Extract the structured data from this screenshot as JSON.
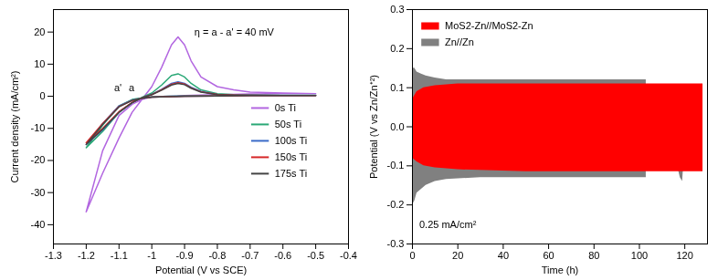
{
  "chart_data": [
    {
      "type": "line",
      "xlabel": "Potential (V vs SCE)",
      "ylabel": "Current density (mA/cm²)",
      "xlim": [
        -1.3,
        -0.4
      ],
      "xticks": [
        -1.3,
        -1.2,
        -1.1,
        -1.0,
        -0.9,
        -0.8,
        -0.7,
        -0.6,
        -0.5,
        -0.4
      ],
      "ylim": [
        -46,
        27
      ],
      "yticks": [
        -40,
        -30,
        -20,
        -10,
        0,
        10,
        20
      ],
      "legend": "right",
      "annotations": [
        {
          "text": "η = a - a' = 40 mV",
          "x": -0.87,
          "y": 20
        },
        {
          "text": "a'",
          "x": -1.115,
          "y": 2.5
        },
        {
          "text": "a",
          "x": -1.07,
          "y": 2.5
        }
      ],
      "series": [
        {
          "name": "0s Ti",
          "color": "#b266e0",
          "x": [
            -0.5,
            -0.6,
            -0.7,
            -0.8,
            -0.9,
            -0.95,
            -1.0,
            -1.03,
            -1.06,
            -1.1,
            -1.15,
            -1.2,
            -1.15,
            -1.1,
            -1.06,
            -1.03,
            -1.0,
            -0.97,
            -0.94,
            -0.92,
            -0.9,
            -0.88,
            -0.85,
            -0.8,
            -0.75,
            -0.7,
            -0.6,
            -0.5
          ],
          "values": [
            0.8,
            0.8,
            0.7,
            0.5,
            0.2,
            0,
            -0.2,
            -1,
            -2.5,
            -6,
            -17,
            -36,
            -24,
            -13,
            -5,
            -1,
            3,
            9,
            16,
            18.5,
            16,
            11,
            6,
            3,
            2,
            1.3,
            1,
            0.8
          ]
        },
        {
          "name": "50s Ti",
          "color": "#2aa876",
          "x": [
            -0.5,
            -0.6,
            -0.7,
            -0.8,
            -0.9,
            -0.95,
            -1.0,
            -1.03,
            -1.06,
            -1.1,
            -1.15,
            -1.2,
            -1.15,
            -1.1,
            -1.06,
            -1.03,
            -1.0,
            -0.97,
            -0.94,
            -0.92,
            -0.9,
            -0.88,
            -0.85,
            -0.8,
            -0.75,
            -0.7,
            -0.6,
            -0.5
          ],
          "values": [
            0.3,
            0.3,
            0.3,
            0.2,
            0.1,
            0,
            -0.2,
            -0.5,
            -1,
            -3,
            -9,
            -16,
            -11,
            -5,
            -2,
            -0.3,
            1,
            3.5,
            6.5,
            7,
            6,
            4,
            2,
            0.8,
            0.5,
            0.4,
            0.3,
            0.3
          ]
        },
        {
          "name": "100s Ti",
          "color": "#3a6bc8",
          "x": [
            -0.5,
            -0.6,
            -0.7,
            -0.8,
            -0.9,
            -0.95,
            -1.0,
            -1.03,
            -1.06,
            -1.1,
            -1.15,
            -1.2,
            -1.15,
            -1.1,
            -1.06,
            -1.03,
            -1.0,
            -0.97,
            -0.94,
            -0.92,
            -0.9,
            -0.88,
            -0.85,
            -0.8,
            -0.75,
            -0.7,
            -0.6,
            -0.5
          ],
          "values": [
            0.2,
            0.2,
            0.2,
            0.1,
            0,
            -0.1,
            -0.3,
            -0.6,
            -1.2,
            -3,
            -8.5,
            -15,
            -10.5,
            -5,
            -2,
            -0.5,
            0.6,
            2.2,
            4,
            4.5,
            4,
            2.8,
            1.5,
            0.6,
            0.4,
            0.3,
            0.2,
            0.2
          ]
        },
        {
          "name": "150s Ti",
          "color": "#d62728",
          "x": [
            -0.5,
            -0.6,
            -0.7,
            -0.8,
            -0.9,
            -0.95,
            -1.0,
            -1.03,
            -1.06,
            -1.1,
            -1.15,
            -1.2,
            -1.15,
            -1.1,
            -1.06,
            -1.03,
            -1.0,
            -0.97,
            -0.94,
            -0.92,
            -0.9,
            -0.88,
            -0.85,
            -0.8,
            -0.75,
            -0.7,
            -0.6,
            -0.5
          ],
          "values": [
            0.2,
            0.2,
            0.2,
            0.1,
            0,
            -0.1,
            -0.3,
            -0.6,
            -1.3,
            -3.2,
            -8.5,
            -14.5,
            -10,
            -4.8,
            -1.9,
            -0.5,
            0.5,
            2,
            3.7,
            4.2,
            3.8,
            2.6,
            1.4,
            0.6,
            0.4,
            0.3,
            0.2,
            0.2
          ]
        },
        {
          "name": "175s Ti",
          "color": "#444444",
          "x": [
            -0.5,
            -0.6,
            -0.7,
            -0.8,
            -0.9,
            -0.95,
            -1.0,
            -1.03,
            -1.06,
            -1.1,
            -1.15,
            -1.2,
            -1.15,
            -1.1,
            -1.06,
            -1.03,
            -1.0,
            -0.97,
            -0.94,
            -0.92,
            -0.9,
            -0.88,
            -0.85,
            -0.8,
            -0.75,
            -0.7,
            -0.6,
            -0.5
          ],
          "values": [
            0.2,
            0.2,
            0.2,
            0.1,
            0,
            -0.1,
            -0.3,
            -0.6,
            -1.3,
            -3.3,
            -8.8,
            -15,
            -10.3,
            -5,
            -2,
            -0.5,
            0.5,
            1.9,
            3.5,
            4,
            3.6,
            2.5,
            1.3,
            0.5,
            0.3,
            0.3,
            0.2,
            0.2
          ]
        }
      ]
    },
    {
      "type": "band",
      "xlabel": "Time (h)",
      "ylabel": "Potential (V vs Zn/Zn⁺²)",
      "xlim": [
        0,
        130
      ],
      "xticks": [
        0,
        20,
        40,
        60,
        80,
        100,
        120
      ],
      "ylim": [
        -0.3,
        0.3
      ],
      "yticks": [
        -0.3,
        -0.2,
        -0.1,
        {
          "value": 0,
          "label": "0.0"
        },
        0.1,
        0.2,
        0.3
      ],
      "legend": "top-left",
      "annotations": [
        {
          "text": "0.25 mA/cm²",
          "x": 3,
          "y": -0.25
        }
      ],
      "series": [
        {
          "name": "MoS2-Zn//MoS2-Zn",
          "color": "#ff0000",
          "x": [
            0,
            2,
            5,
            10,
            20,
            50,
            100,
            128
          ],
          "upper": [
            0.07,
            0.09,
            0.1,
            0.105,
            0.11,
            0.11,
            0.11,
            0.11
          ],
          "lower": [
            -0.08,
            -0.09,
            -0.1,
            -0.105,
            -0.11,
            -0.115,
            -0.115,
            -0.115
          ]
        },
        {
          "name": "Zn//Zn",
          "color": "#808080",
          "x": [
            0,
            1,
            2,
            4,
            6,
            10,
            15,
            30,
            50,
            70,
            90,
            100,
            103,
            105,
            108,
            110,
            112,
            114,
            116,
            118,
            119,
            120,
            122
          ],
          "upper": [
            0.15,
            0.15,
            0.14,
            0.135,
            0.13,
            0.125,
            0.12,
            0.12,
            0.12,
            0.12,
            0.12,
            0.12,
            0.12,
            null,
            0.03,
            0.05,
            0.06,
            0.04,
            0.05,
            0.06,
            0.04,
            0.03,
            0.02
          ],
          "lower": [
            -0.2,
            -0.19,
            -0.17,
            -0.16,
            -0.15,
            -0.14,
            -0.135,
            -0.13,
            -0.13,
            -0.13,
            -0.13,
            -0.13,
            -0.13,
            null,
            -0.04,
            -0.05,
            -0.07,
            -0.06,
            -0.08,
            -0.13,
            -0.14,
            -0.06,
            -0.03
          ]
        }
      ]
    }
  ]
}
